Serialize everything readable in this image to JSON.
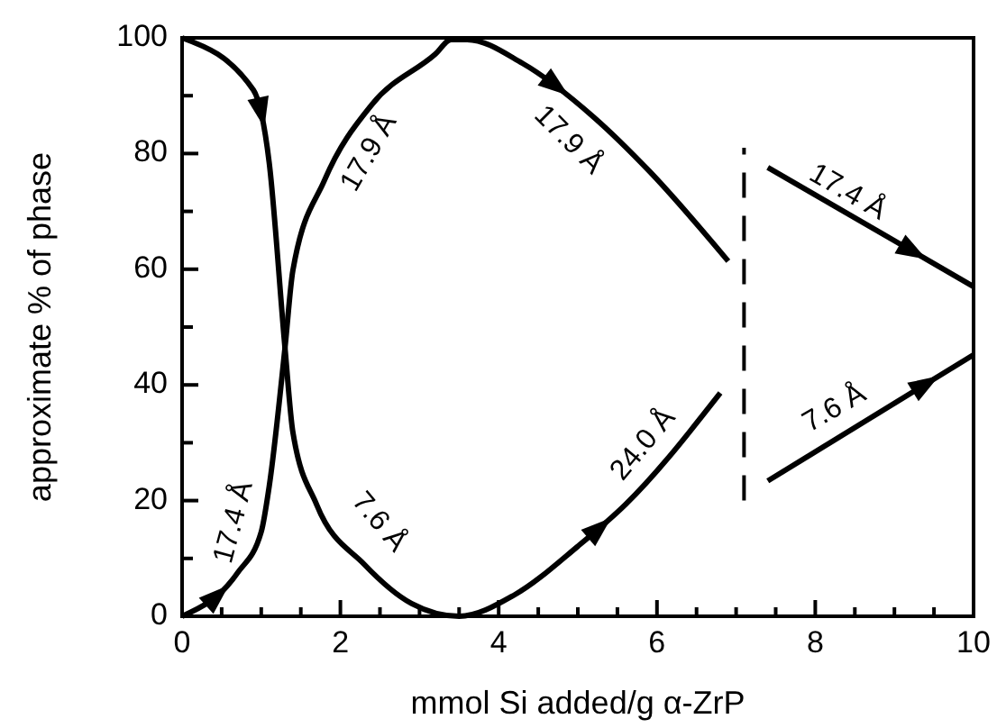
{
  "chart_data": {
    "type": "line",
    "xlabel": "mmol Si added/g α-ZrP",
    "ylabel": "approximate % of phase",
    "xlim": [
      0,
      10
    ],
    "ylim": [
      0,
      100
    ],
    "xticks": [
      0,
      {
        "value": 0.5,
        "label": null
      },
      {
        "value": 1,
        "label": null
      },
      {
        "value": 1.5,
        "label": null
      },
      2,
      {
        "value": 2.5,
        "label": null
      },
      {
        "value": 3,
        "label": null
      },
      {
        "value": 3.5,
        "label": null
      },
      4,
      {
        "value": 4.5,
        "label": null
      },
      {
        "value": 5,
        "label": null
      },
      {
        "value": 5.5,
        "label": null
      },
      6,
      {
        "value": 6.5,
        "label": null
      },
      {
        "value": 7,
        "label": null
      },
      {
        "value": 7.5,
        "label": null
      },
      8,
      {
        "value": 8.5,
        "label": null
      },
      {
        "value": 9,
        "label": null
      },
      {
        "value": 9.5,
        "label": null
      },
      10
    ],
    "yticks": [
      0,
      {
        "value": 10,
        "label": null
      },
      20,
      {
        "value": 30,
        "label": null
      },
      40,
      {
        "value": 50,
        "label": null
      },
      60,
      {
        "value": 70,
        "label": null
      },
      80,
      {
        "value": 90,
        "label": null
      },
      100
    ],
    "grid": false,
    "marker": "none",
    "line_style": "solid",
    "series": [
      {
        "color": "#000000",
        "x": [
          0,
          0.9,
          1.1,
          1.3,
          1.4,
          1.7,
          2.3,
          2.9,
          3.5,
          4.2,
          5,
          5.6,
          6.8
        ],
        "values": [
          100,
          91,
          78.5,
          46.4,
          31.8,
          19.3,
          9,
          2.2,
          0,
          3.7,
          12.1,
          19.3,
          38.6
        ]
      },
      {
        "color": "#000000",
        "x": [
          0,
          0.7,
          1,
          1.1,
          1.3,
          1.4,
          1.8,
          2.4,
          3.2,
          3.4,
          3.6,
          4.3,
          5.2,
          5.9,
          6.9
        ],
        "values": [
          0,
          7.5,
          14.6,
          22.4,
          46.4,
          59.8,
          75.4,
          88.5,
          97.2,
          99.7,
          99.7,
          95.6,
          86.3,
          77,
          61.4
        ]
      },
      {
        "color": "#000000",
        "x": [
          7.4,
          10
        ],
        "values": [
          77.6,
          57
        ]
      },
      {
        "color": "#000000",
        "x": [
          7.4,
          10
        ],
        "values": [
          23.4,
          45.2
        ]
      }
    ],
    "ref_lines": [
      {
        "axis": "x",
        "value": 7.1,
        "line_style": "dashed",
        "color": "#000000"
      }
    ],
    "annotations": [
      "17.4 Å",
      "17.9 Å",
      "17.9 Å",
      "7.6 Å",
      "24.0 Å",
      "17.4 Å",
      "7.6 Å"
    ]
  }
}
